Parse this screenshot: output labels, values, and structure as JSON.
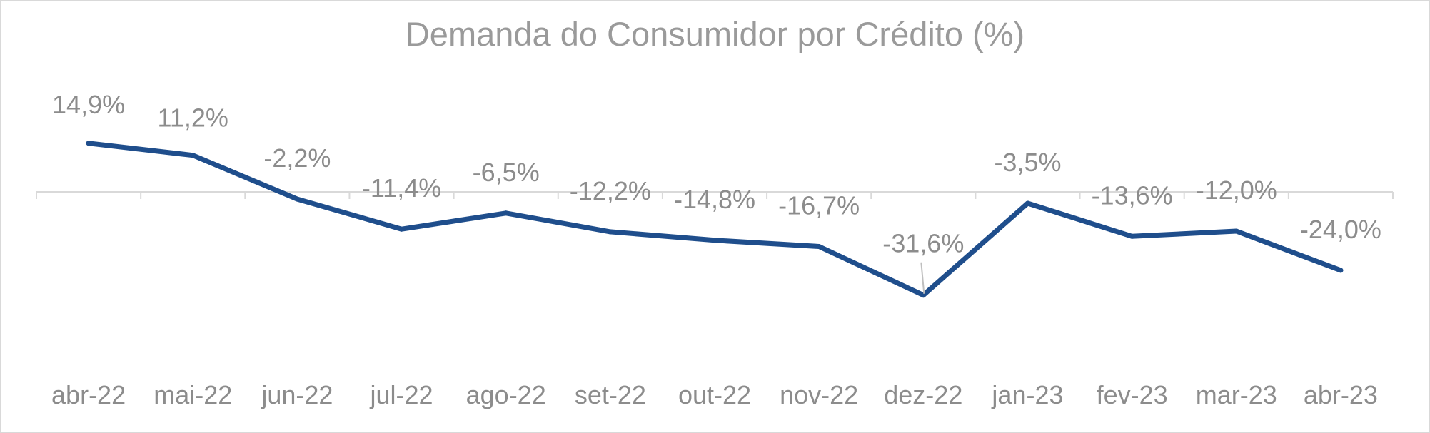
{
  "chart_data": {
    "type": "line",
    "title": "Demanda do Consumidor por Crédito (%)",
    "xlabel": "",
    "ylabel": "",
    "categories": [
      "abr-22",
      "mai-22",
      "jun-22",
      "jul-22",
      "ago-22",
      "set-22",
      "out-22",
      "nov-22",
      "dez-22",
      "jan-23",
      "fev-23",
      "mar-23",
      "abr-23"
    ],
    "series": [
      {
        "values": [
          14.9,
          11.2,
          -2.2,
          -11.4,
          -6.5,
          -12.2,
          -14.8,
          -16.7,
          -31.6,
          -3.5,
          -13.6,
          -12.0,
          -24.0
        ],
        "labels": [
          "14,9%",
          "11,2%",
          "-2,2%",
          "-11,4%",
          "-6,5%",
          "-12,2%",
          "-14,8%",
          "-16,7%",
          "-31,6%",
          "-3,5%",
          "-13,6%",
          "-12,0%",
          "-24,0%"
        ],
        "color": "#1f4e8c"
      }
    ],
    "grid": false,
    "legend": "none",
    "colors": {
      "axis": "#d9d9d9",
      "text": "#8c8c8c",
      "title": "#9a9a9a",
      "leader": "#bfbfbf"
    }
  }
}
